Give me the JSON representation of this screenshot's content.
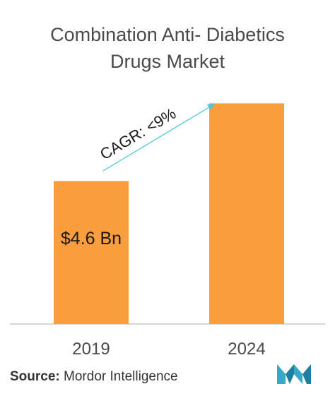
{
  "title": [
    "Combination Anti- Diabetics",
    "Drugs Market"
  ],
  "chart_data": {
    "type": "bar",
    "categories": [
      "2019",
      "2024"
    ],
    "values": [
      4.6,
      7.1
    ],
    "data_labels": [
      "$4.6 Bn",
      ""
    ],
    "annotation": "CAGR: <9%",
    "title": "Combination Anti- Diabetics Drugs Market",
    "xlabel": "",
    "ylabel": "",
    "ylim": [
      0,
      7.7
    ],
    "grid": false
  },
  "source": {
    "label": "Source:",
    "text": "Mordor Intelligence"
  },
  "colors": {
    "bar": "#fa9d3c",
    "arrow": "#4fc4dc",
    "axis": "#c8c8c8",
    "logo": "#37a9c7"
  },
  "icons": {
    "logo": "mordor-intelligence-logo"
  }
}
